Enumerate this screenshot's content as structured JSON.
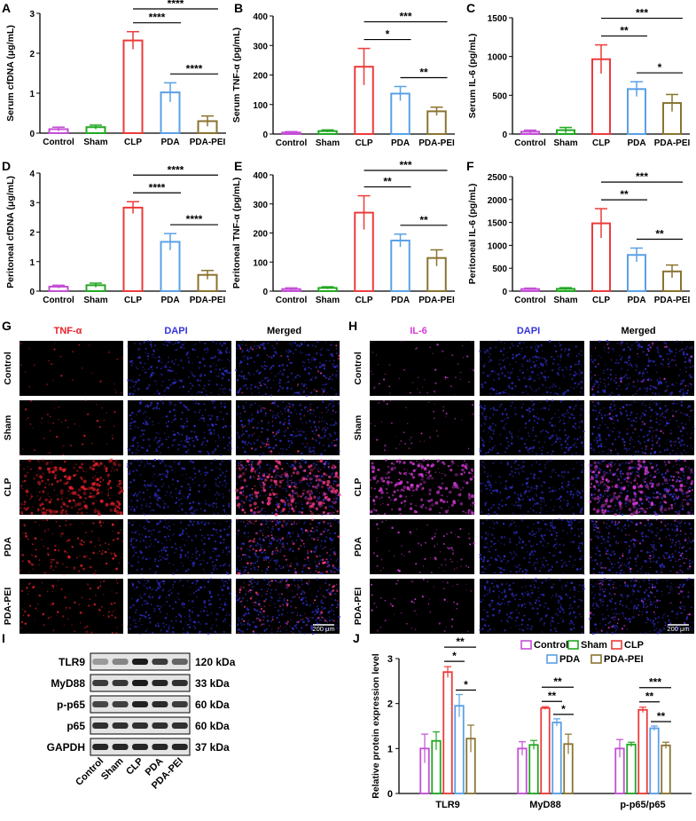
{
  "colors": {
    "Control": "#c44fd6",
    "Sham": "#22a822",
    "CLP": "#ec3b3b",
    "PDA": "#5aa0e8",
    "PDA-PEI": "#8a7330",
    "TNF": "#e8202a",
    "IL6": "#d73ad9",
    "DAPI": "#3333dd"
  },
  "panels": {
    "A": "A",
    "B": "B",
    "C": "C",
    "D": "D",
    "E": "E",
    "F": "F",
    "G": "G",
    "H": "H",
    "I": "I",
    "J": "J"
  },
  "chart_data": [
    {
      "id": "A",
      "type": "bar",
      "ylabel": "Serum cfDNA (μg/mL)",
      "categories": [
        "Control",
        "Sham",
        "CLP",
        "PDA",
        "PDA-PEI"
      ],
      "values": [
        0.1,
        0.15,
        2.32,
        1.02,
        0.3
      ],
      "errors": [
        0.05,
        0.05,
        0.22,
        0.24,
        0.13
      ],
      "ylim": [
        0,
        3
      ],
      "ticks": [
        0,
        1,
        2,
        3
      ],
      "sig": [
        {
          "from": 2,
          "to": 3,
          "label": "****",
          "level": 0
        },
        {
          "from": 2,
          "to": 4,
          "label": "****",
          "level": 1
        },
        {
          "from": 3,
          "to": 4,
          "label": "****",
          "level": -1
        }
      ]
    },
    {
      "id": "B",
      "type": "bar",
      "ylabel": "Serum TNF-α (pg/mL)",
      "categories": [
        "Control",
        "Sham",
        "CLP",
        "PDA",
        "PDA-PEI"
      ],
      "values": [
        5,
        10,
        228,
        137,
        77
      ],
      "errors": [
        3,
        4,
        62,
        24,
        14
      ],
      "ylim": [
        0,
        400
      ],
      "ticks": [
        0,
        100,
        200,
        300,
        400
      ],
      "sig": [
        {
          "from": 2,
          "to": 3,
          "label": "*",
          "level": 0
        },
        {
          "from": 2,
          "to": 4,
          "label": "***",
          "level": 1
        },
        {
          "from": 3,
          "to": 4,
          "label": "**",
          "level": -1
        }
      ]
    },
    {
      "id": "C",
      "type": "bar",
      "ylabel": "Serum IL-6 (pg/mL)",
      "categories": [
        "Control",
        "Sham",
        "CLP",
        "PDA",
        "PDA-PEI"
      ],
      "values": [
        30,
        50,
        965,
        580,
        400
      ],
      "errors": [
        20,
        35,
        185,
        95,
        110
      ],
      "ylim": [
        0,
        1500
      ],
      "ticks": [
        0,
        500,
        1000,
        1500
      ],
      "sig": [
        {
          "from": 2,
          "to": 3,
          "label": "**",
          "level": 0
        },
        {
          "from": 2,
          "to": 4,
          "label": "***",
          "level": 1
        },
        {
          "from": 3,
          "to": 4,
          "label": "*",
          "level": -1
        }
      ]
    },
    {
      "id": "D",
      "type": "bar",
      "ylabel": "Peritoneal cfDNA (μg/mL)",
      "categories": [
        "Control",
        "Sham",
        "CLP",
        "PDA",
        "PDA-PEI"
      ],
      "values": [
        0.15,
        0.2,
        2.83,
        1.67,
        0.55
      ],
      "errors": [
        0.05,
        0.07,
        0.2,
        0.28,
        0.15
      ],
      "ylim": [
        0,
        4
      ],
      "ticks": [
        0,
        1,
        2,
        3,
        4
      ],
      "sig": [
        {
          "from": 2,
          "to": 3,
          "label": "****",
          "level": 0
        },
        {
          "from": 2,
          "to": 4,
          "label": "****",
          "level": 1
        },
        {
          "from": 3,
          "to": 4,
          "label": "****",
          "level": -1
        }
      ]
    },
    {
      "id": "E",
      "type": "bar",
      "ylabel": "Peritoneal TNF-α (pg/mL)",
      "categories": [
        "Control",
        "Sham",
        "CLP",
        "PDA",
        "PDA-PEI"
      ],
      "values": [
        7,
        11,
        270,
        174,
        114
      ],
      "errors": [
        4,
        4,
        58,
        22,
        28
      ],
      "ylim": [
        0,
        400
      ],
      "ticks": [
        0,
        100,
        200,
        300,
        400
      ],
      "sig": [
        {
          "from": 2,
          "to": 3,
          "label": "**",
          "level": 0
        },
        {
          "from": 2,
          "to": 4,
          "label": "***",
          "level": 1
        },
        {
          "from": 3,
          "to": 4,
          "label": "**",
          "level": -1
        }
      ]
    },
    {
      "id": "F",
      "type": "bar",
      "ylabel": "Peritoneal IL-6 (pg/mL)",
      "categories": [
        "Control",
        "Sham",
        "CLP",
        "PDA",
        "PDA-PEI"
      ],
      "values": [
        45,
        50,
        1480,
        790,
        430
      ],
      "errors": [
        20,
        25,
        320,
        150,
        140
      ],
      "ylim": [
        0,
        2500
      ],
      "ticks": [
        0,
        500,
        1000,
        1500,
        2000,
        2500
      ],
      "sig": [
        {
          "from": 2,
          "to": 3,
          "label": "**",
          "level": 0
        },
        {
          "from": 2,
          "to": 4,
          "label": "***",
          "level": 1
        },
        {
          "from": 3,
          "to": 4,
          "label": "**",
          "level": -1
        }
      ]
    },
    {
      "id": "J",
      "type": "bar",
      "ylabel": "Relative protein expression level",
      "groups": [
        "TLR9",
        "MyD88",
        "p-p65/p65"
      ],
      "series": [
        {
          "name": "Control",
          "values": [
            1.0,
            1.0,
            1.0
          ],
          "errors": [
            0.32,
            0.15,
            0.2
          ]
        },
        {
          "name": "Sham",
          "values": [
            1.17,
            1.08,
            1.09
          ],
          "errors": [
            0.2,
            0.1,
            0.05
          ]
        },
        {
          "name": "CLP",
          "values": [
            2.7,
            1.9,
            1.86
          ],
          "errors": [
            0.12,
            0.03,
            0.06
          ]
        },
        {
          "name": "PDA",
          "values": [
            1.95,
            1.58,
            1.45
          ],
          "errors": [
            0.25,
            0.08,
            0.05
          ]
        },
        {
          "name": "PDA-PEI",
          "values": [
            1.22,
            1.1,
            1.07
          ],
          "errors": [
            0.3,
            0.22,
            0.07
          ]
        }
      ],
      "ylim": [
        0,
        3
      ],
      "ticks": [
        0,
        1,
        2,
        3
      ],
      "legend": "top",
      "sig": [
        {
          "group": 0,
          "from": 2,
          "to": 3,
          "label": "*",
          "level": 0
        },
        {
          "group": 0,
          "from": 2,
          "to": 4,
          "label": "**",
          "level": 1
        },
        {
          "group": 0,
          "from": 3,
          "to": 4,
          "label": "*",
          "level": -1
        },
        {
          "group": 1,
          "from": 2,
          "to": 3,
          "label": "**",
          "level": 0
        },
        {
          "group": 1,
          "from": 2,
          "to": 4,
          "label": "**",
          "level": 1
        },
        {
          "group": 1,
          "from": 3,
          "to": 4,
          "label": "*",
          "level": -1
        },
        {
          "group": 2,
          "from": 2,
          "to": 3,
          "label": "**",
          "level": 0
        },
        {
          "group": 2,
          "from": 2,
          "to": 4,
          "label": "***",
          "level": 1
        },
        {
          "group": 2,
          "from": 3,
          "to": 4,
          "label": "**",
          "level": -1
        }
      ]
    }
  ],
  "microscopy": {
    "G": {
      "columns": [
        "TNF-α",
        "DAPI",
        "Merged"
      ],
      "rows": [
        "Control",
        "Sham",
        "CLP",
        "PDA",
        "PDA-PEI"
      ],
      "signal": [
        0.03,
        0.1,
        0.85,
        0.35,
        0.25
      ],
      "scale_bar": "200 μm"
    },
    "H": {
      "columns": [
        "IL-6",
        "DAPI",
        "Merged"
      ],
      "rows": [
        "Control",
        "Sham",
        "CLP",
        "PDA",
        "PDA-PEI"
      ],
      "signal": [
        0.1,
        0.08,
        0.8,
        0.18,
        0.12
      ],
      "scale_bar": "200 μm"
    }
  },
  "blot": {
    "proteins": [
      "TLR9",
      "MyD88",
      "p-p65",
      "p65",
      "GAPDH"
    ],
    "sizes": [
      "120 kDa",
      "33 kDa",
      "60 kDa",
      "60 kDa",
      "37 kDa"
    ],
    "lanes": [
      "Control",
      "Sham",
      "CLP",
      "PDA",
      "PDA-PEI"
    ],
    "intensity": [
      [
        0.35,
        0.45,
        0.95,
        0.8,
        0.6
      ],
      [
        0.8,
        0.82,
        0.95,
        0.9,
        0.85
      ],
      [
        0.75,
        0.78,
        0.92,
        0.88,
        0.8
      ],
      [
        0.85,
        0.85,
        0.85,
        0.85,
        0.85
      ],
      [
        0.9,
        0.9,
        0.9,
        0.9,
        0.9
      ]
    ]
  }
}
